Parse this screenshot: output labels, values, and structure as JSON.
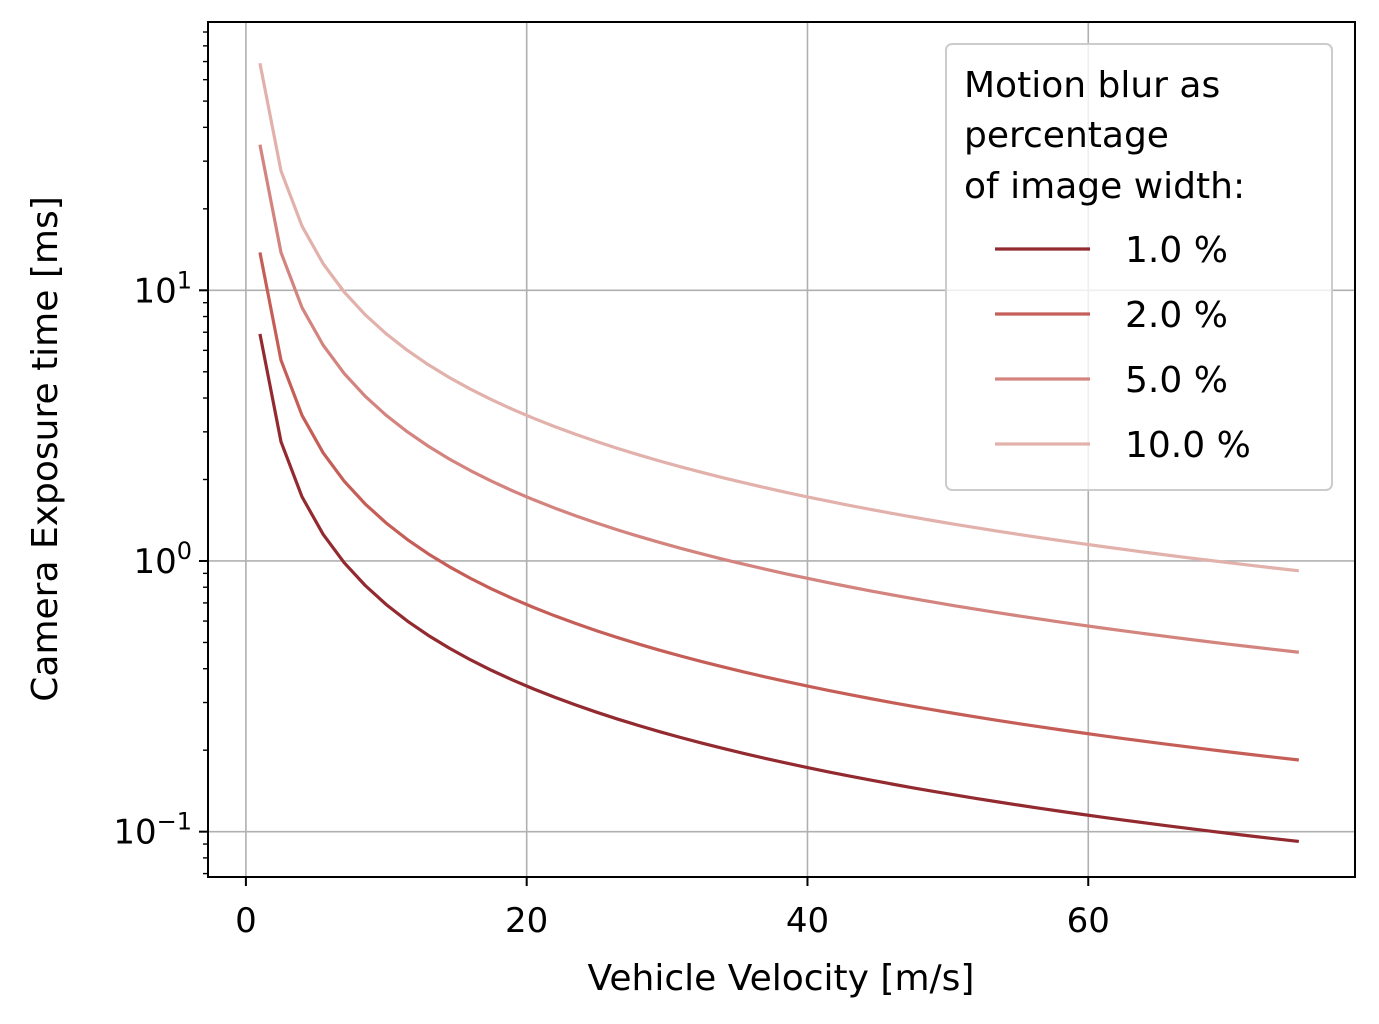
{
  "chart_data": {
    "type": "line",
    "xlabel": "Vehicle Velocity [m/s]",
    "ylabel": "Camera Exposure time [ms]",
    "xlim": [
      -2.7,
      79
    ],
    "ylim": [
      0.068,
      98
    ],
    "yscale": "log",
    "grid": true,
    "x_ticks": [
      0,
      20,
      40,
      60
    ],
    "y_ticks": [
      {
        "value": 0.1,
        "base": "10",
        "exp": "−1"
      },
      {
        "value": 1,
        "base": "10",
        "exp": "0"
      },
      {
        "value": 10,
        "base": "10",
        "exp": "1"
      }
    ],
    "legend": {
      "title_lines": [
        "Motion blur as",
        "percentage",
        "of image width:"
      ],
      "placement": "upper right"
    },
    "x": [
      1,
      2.5,
      4,
      5.5,
      7,
      8.5,
      10,
      11.5,
      13,
      14.5,
      16,
      17.5,
      19,
      20.5,
      22,
      23.5,
      25,
      26.5,
      28,
      29.5,
      31,
      32.5,
      34,
      35.5,
      37,
      38.5,
      40,
      41.5,
      43,
      44.5,
      46,
      47.5,
      49,
      50.5,
      52,
      53.5,
      55,
      56.5,
      58,
      59.5,
      61,
      62.5,
      64,
      65.5,
      67,
      68.5,
      70,
      71.5,
      73,
      75
    ],
    "series": [
      {
        "name": "1.0 %",
        "color": "#922a30",
        "k": 6.9
      },
      {
        "name": "2.0 %",
        "color": "#c65e58",
        "k": 13.8
      },
      {
        "name": "5.0 %",
        "color": "#d4847f",
        "k": 34.5
      },
      {
        "name": "10.0 %",
        "color": "#e2b1ab",
        "k": 69
      }
    ]
  }
}
